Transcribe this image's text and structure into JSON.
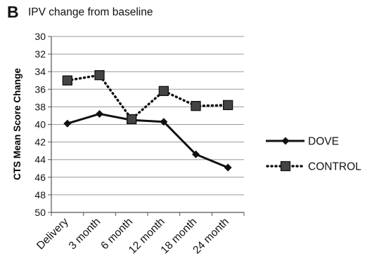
{
  "panel_label": "B",
  "chart_data": {
    "type": "line",
    "title": "IPV change from baseline",
    "xlabel": "",
    "ylabel": "CTS Mean Score Change",
    "categories": [
      "Delivery",
      "3 month",
      "6 month",
      "12 month",
      "18 month",
      "24 month"
    ],
    "y_ticks": [
      "30",
      "32",
      "34",
      "36",
      "38",
      "40",
      "42",
      "44",
      "46",
      "48",
      "50"
    ],
    "ylim": [
      30,
      50
    ],
    "y_inverted": true,
    "grid": true,
    "legend_position": "right",
    "series": [
      {
        "name": "DOVE",
        "values": [
          39.9,
          38.8,
          39.5,
          39.7,
          43.4,
          44.9
        ],
        "line_style": "solid",
        "marker": "diamond",
        "color": "#111111"
      },
      {
        "name": "CONTROL",
        "values": [
          35.0,
          34.4,
          39.4,
          36.2,
          37.9,
          37.8
        ],
        "line_style": "dotted",
        "marker": "square",
        "color": "#111111",
        "marker_fill": "#444444"
      }
    ]
  }
}
